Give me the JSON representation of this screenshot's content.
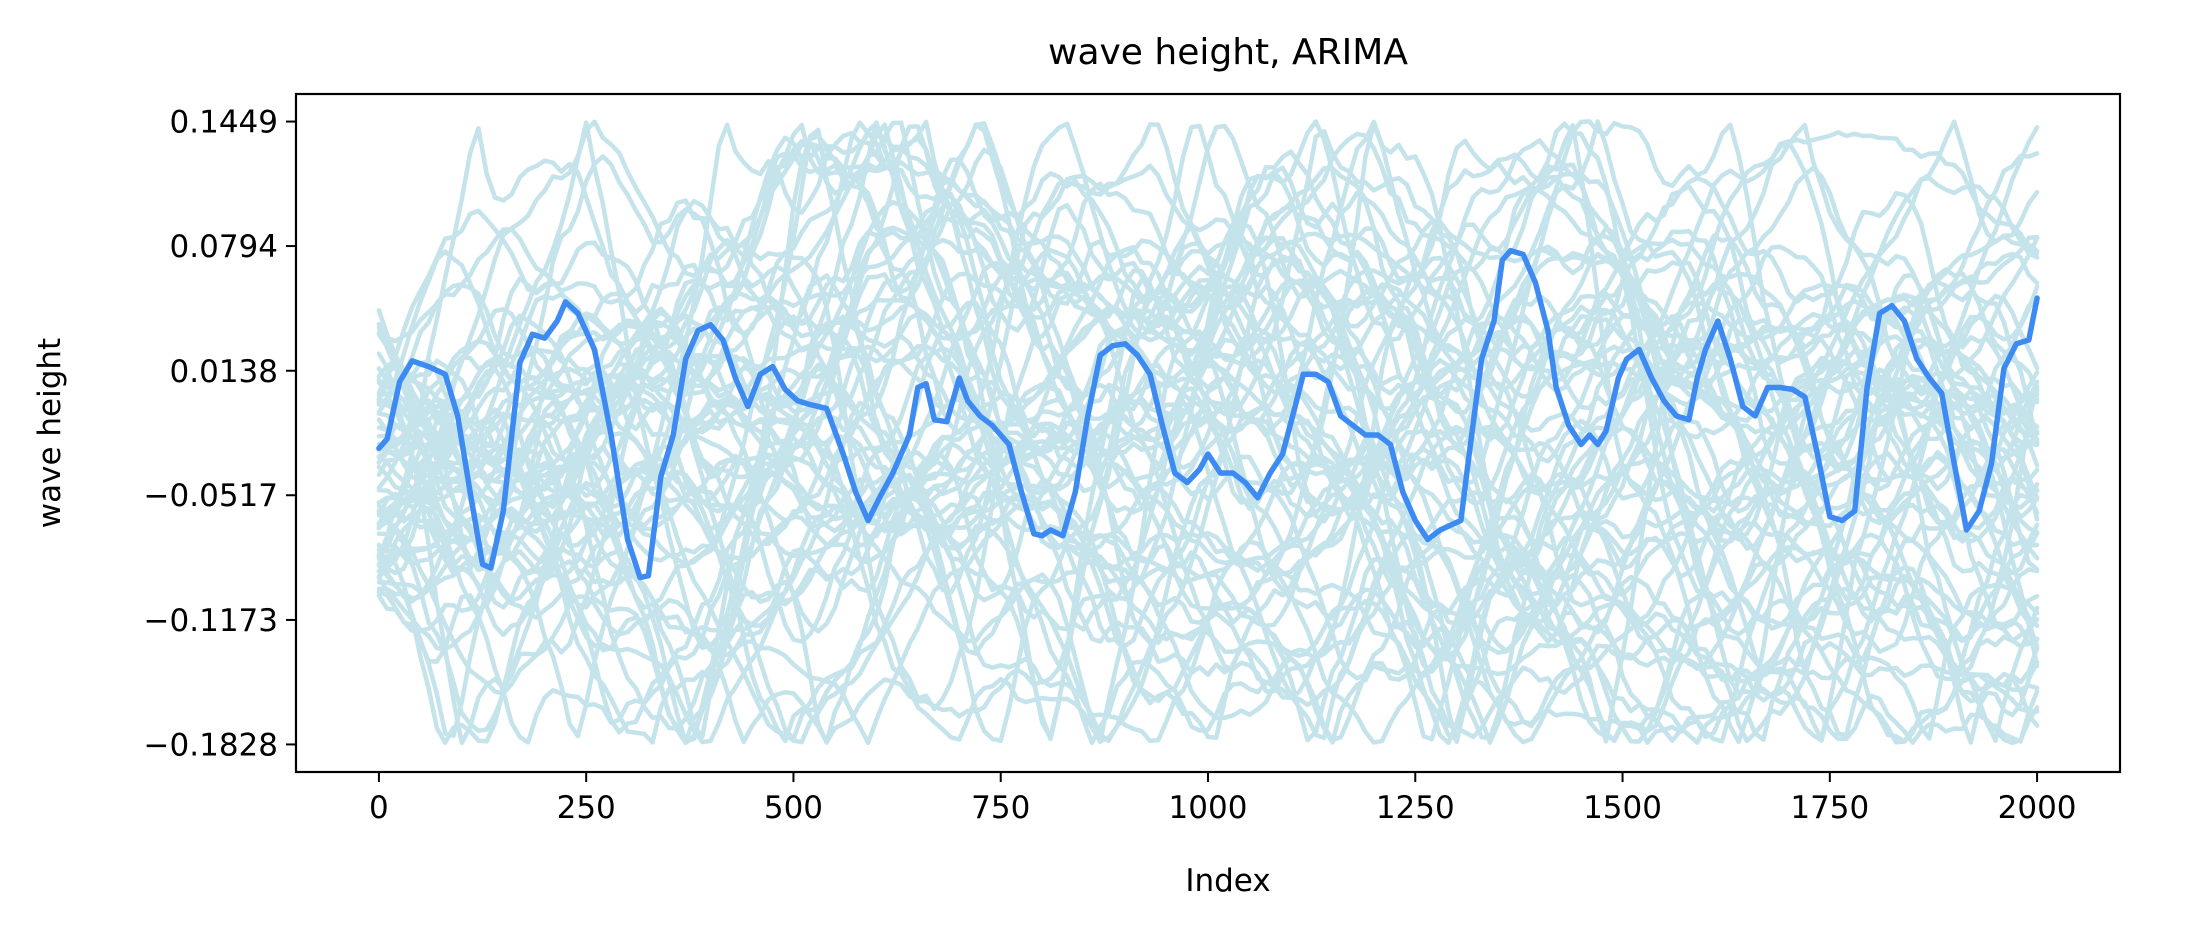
{
  "chart_data": {
    "type": "line",
    "title": "wave height, ARIMA",
    "xlabel": "Index",
    "ylabel": "wave height",
    "xlim": [
      -100,
      2100
    ],
    "ylim": [
      -0.1973,
      0.1594
    ],
    "x_ticks": [
      0,
      250,
      500,
      750,
      1000,
      1250,
      1500,
      1750,
      2000
    ],
    "x_tick_labels": [
      "0",
      "250",
      "500",
      "750",
      "1000",
      "1250",
      "1500",
      "1750",
      "2000"
    ],
    "y_ticks": [
      0.1449,
      0.0794,
      0.0138,
      -0.0517,
      -0.1173,
      -0.1828
    ],
    "y_tick_labels": [
      "0.1449",
      "0.0794",
      "0.0138",
      "−0.0517",
      "−0.1173",
      "−0.1828"
    ],
    "grid": false,
    "legend": "none",
    "colors": {
      "samples": "#c5e3ea",
      "highlight": "#3d8bf2"
    },
    "sample_series_count": 60,
    "sample_band": {
      "min": -0.182,
      "max": 0.145
    },
    "series": [
      {
        "x": [
          0,
          10,
          25,
          40,
          60,
          80,
          95,
          110,
          125,
          135,
          150,
          170,
          185,
          200,
          215,
          225,
          240,
          260,
          280,
          300,
          315,
          325,
          340,
          355,
          370,
          385,
          400,
          415,
          430,
          445,
          460,
          475,
          490,
          505,
          520,
          540,
          560,
          575,
          590,
          605,
          620,
          640,
          650,
          660,
          670,
          685,
          700,
          710,
          725,
          740,
          760,
          775,
          790,
          800,
          810,
          825,
          840,
          855,
          870,
          885,
          900,
          915,
          930,
          945,
          960,
          975,
          990,
          1000,
          1015,
          1030,
          1045,
          1060,
          1075,
          1090,
          1105,
          1115,
          1130,
          1145,
          1160,
          1175,
          1190,
          1205,
          1220,
          1235,
          1250,
          1265,
          1280,
          1295,
          1305,
          1315,
          1330,
          1345,
          1355,
          1365,
          1380,
          1395,
          1410,
          1420,
          1435,
          1450,
          1460,
          1470,
          1480,
          1495,
          1505,
          1520,
          1535,
          1550,
          1565,
          1580,
          1590,
          1600,
          1615,
          1630,
          1645,
          1660,
          1675,
          1690,
          1705,
          1720,
          1735,
          1750,
          1765,
          1780,
          1795,
          1810,
          1825,
          1840,
          1855,
          1870,
          1885,
          1900,
          1915,
          1930,
          1945,
          1960,
          1975,
          1990,
          2000
        ],
        "values": [
          -0.027,
          -0.022,
          0.008,
          0.019,
          0.016,
          0.012,
          -0.01,
          -0.05,
          -0.088,
          -0.09,
          -0.06,
          0.018,
          0.033,
          0.031,
          0.04,
          0.05,
          0.044,
          0.025,
          -0.02,
          -0.075,
          -0.095,
          -0.094,
          -0.042,
          -0.02,
          0.02,
          0.035,
          0.038,
          0.03,
          0.01,
          -0.005,
          0.012,
          0.016,
          0.004,
          -0.002,
          -0.004,
          -0.006,
          -0.03,
          -0.05,
          -0.065,
          -0.052,
          -0.04,
          -0.02,
          0.005,
          0.007,
          -0.012,
          -0.013,
          0.01,
          -0.002,
          -0.01,
          -0.015,
          -0.025,
          -0.05,
          -0.072,
          -0.073,
          -0.07,
          -0.073,
          -0.05,
          -0.01,
          0.022,
          0.027,
          0.028,
          0.022,
          0.012,
          -0.015,
          -0.04,
          -0.045,
          -0.038,
          -0.03,
          -0.04,
          -0.04,
          -0.045,
          -0.053,
          -0.04,
          -0.03,
          -0.005,
          0.012,
          0.012,
          0.008,
          -0.01,
          -0.015,
          -0.02,
          -0.02,
          -0.025,
          -0.05,
          -0.065,
          -0.075,
          -0.07,
          -0.067,
          -0.065,
          -0.03,
          0.02,
          0.04,
          0.072,
          0.077,
          0.075,
          0.06,
          0.035,
          0.005,
          -0.015,
          -0.025,
          -0.02,
          -0.025,
          -0.018,
          0.01,
          0.02,
          0.025,
          0.01,
          -0.002,
          -0.01,
          -0.012,
          0.01,
          0.025,
          0.04,
          0.02,
          -0.005,
          -0.01,
          0.005,
          0.005,
          0.004,
          0.0,
          -0.03,
          -0.063,
          -0.065,
          -0.06,
          0.005,
          0.044,
          0.048,
          0.04,
          0.02,
          0.01,
          0.002,
          -0.035,
          -0.07,
          -0.06,
          -0.035,
          0.015,
          0.028,
          0.03,
          0.052
        ]
      }
    ]
  }
}
